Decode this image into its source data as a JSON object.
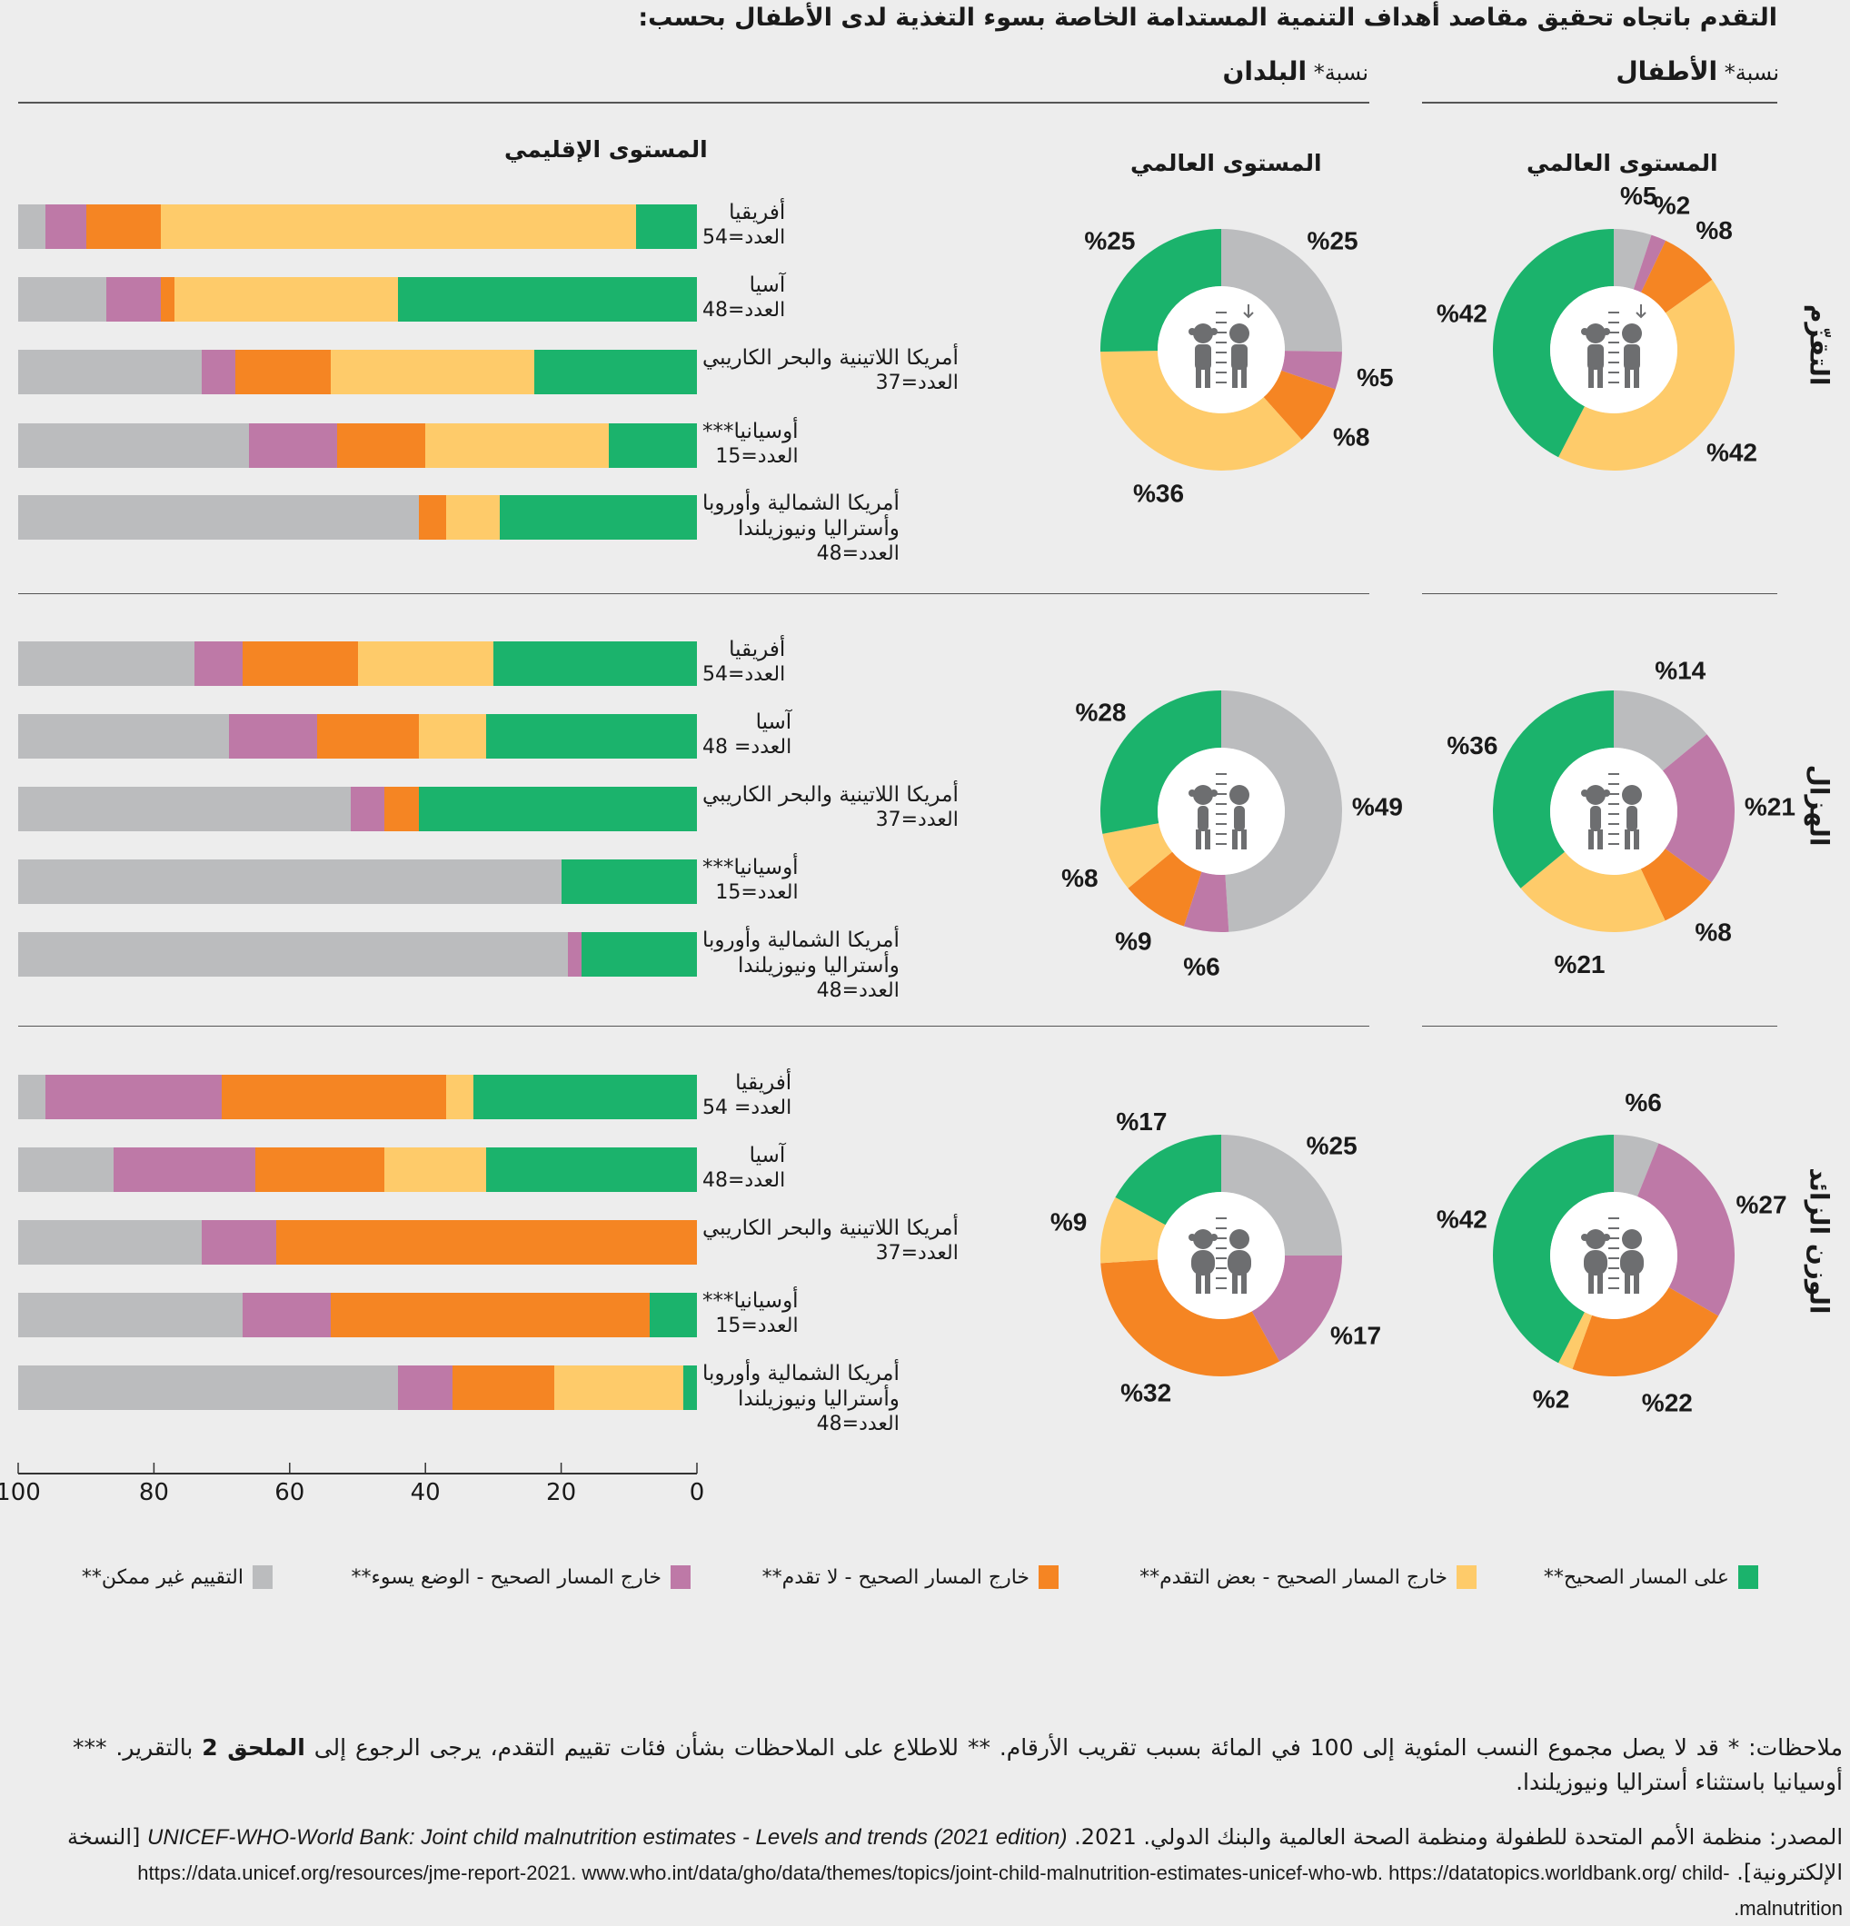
{
  "header": {
    "title": "التقدم باتجاه تحقيق مقاصد أهداف التنمية المستدامة الخاصة بسوء التغذية لدى الأطفال بحسب:",
    "children_share_prefix": "نسبة*",
    "children_share_label": "الأطفال",
    "countries_share_prefix": "نسبة*",
    "countries_share_label": "البلدان"
  },
  "subheaders": {
    "regional": "المستوى الإقليمي",
    "global_countries": "المستوى العالمي",
    "global_children": "المستوى العالمي"
  },
  "colors": {
    "on_track": "#1bb36c",
    "some_progress": "#fecb6a",
    "no_progress": "#f58523",
    "worsening": "#be79a7",
    "not_assessed": "#bbbcbe",
    "icon": "#6d6e70"
  },
  "legend": [
    {
      "key": "on_track",
      "label": "على المسار الصحيح**"
    },
    {
      "key": "some_progress",
      "label": "خارج المسار الصحيح - بعض التقدم**"
    },
    {
      "key": "no_progress",
      "label": "خارج المسار الصحيح - لا تقدم**"
    },
    {
      "key": "worsening",
      "label": "خارج المسار الصحيح - الوضع يسوء**"
    },
    {
      "key": "not_assessed",
      "label": "التقييم غير ممكن**"
    }
  ],
  "chart_data": [
    {
      "type": "bar",
      "orientation": "horizontal-stacked",
      "title": "المستوى الإقليمي",
      "xlabel": "",
      "xlim": [
        0,
        100
      ],
      "xticks": [
        100,
        80,
        60,
        40,
        20,
        0
      ],
      "segment_order": [
        "on_track",
        "some_progress",
        "no_progress",
        "worsening",
        "not_assessed"
      ],
      "panels": [
        {
          "indicator": "التقزّم",
          "icon": "children-height-down-icon",
          "regions": [
            {
              "name": "أفريقيا",
              "n_label": "العدد=54",
              "values": {
                "on_track": 9,
                "some_progress": 70,
                "no_progress": 11,
                "worsening": 6,
                "not_assessed": 4
              }
            },
            {
              "name": "آسيا",
              "n_label": "العدد=48",
              "values": {
                "on_track": 44,
                "some_progress": 33,
                "no_progress": 2,
                "worsening": 8,
                "not_assessed": 13
              }
            },
            {
              "name": "أمريكا اللاتينية والبحر الكاريبي",
              "n_label": "العدد=37",
              "values": {
                "on_track": 24,
                "some_progress": 30,
                "no_progress": 14,
                "worsening": 5,
                "not_assessed": 27
              }
            },
            {
              "name": "أوسيانيا***",
              "n_label": "العدد=15",
              "values": {
                "on_track": 13,
                "some_progress": 27,
                "no_progress": 13,
                "worsening": 13,
                "not_assessed": 34
              }
            },
            {
              "name": "أمريكا الشمالية وأوروبا",
              "name2": "وأستراليا ونيوزيلندا",
              "n_label": "العدد=48",
              "values": {
                "on_track": 29,
                "some_progress": 8,
                "no_progress": 4,
                "worsening": 0,
                "not_assessed": 59
              }
            }
          ]
        },
        {
          "indicator": "الهزال",
          "icon": "children-thin-icon",
          "regions": [
            {
              "name": "أفريقيا",
              "n_label": "العدد=54",
              "values": {
                "on_track": 30,
                "some_progress": 20,
                "no_progress": 17,
                "worsening": 7,
                "not_assessed": 26
              }
            },
            {
              "name": "آسيا",
              "n_label": "العدد= 48",
              "values": {
                "on_track": 31,
                "some_progress": 10,
                "no_progress": 15,
                "worsening": 13,
                "not_assessed": 31
              }
            },
            {
              "name": "أمريكا اللاتينية والبحر الكاريبي",
              "n_label": "العدد=37",
              "values": {
                "on_track": 41,
                "some_progress": 0,
                "no_progress": 5,
                "worsening": 5,
                "not_assessed": 49
              }
            },
            {
              "name": "أوسيانيا***",
              "n_label": "العدد=15",
              "values": {
                "on_track": 20,
                "some_progress": 0,
                "no_progress": 0,
                "worsening": 0,
                "not_assessed": 80
              }
            },
            {
              "name": "أمريكا الشمالية وأوروبا",
              "name2": "وأستراليا ونيوزيلندا",
              "n_label": "العدد=48",
              "values": {
                "on_track": 17,
                "some_progress": 0,
                "no_progress": 0,
                "worsening": 2,
                "not_assessed": 81
              }
            }
          ]
        },
        {
          "indicator": "الوزن الزائد",
          "icon": "children-overweight-icon",
          "regions": [
            {
              "name": "أفريقيا",
              "n_label": "العدد= 54",
              "values": {
                "on_track": 33,
                "some_progress": 4,
                "no_progress": 33,
                "worsening": 26,
                "not_assessed": 4
              }
            },
            {
              "name": "آسيا",
              "n_label": "العدد=48",
              "values": {
                "on_track": 31,
                "some_progress": 15,
                "no_progress": 19,
                "worsening": 21,
                "not_assessed": 14
              }
            },
            {
              "name": "أمريكا اللاتينية والبحر الكاريبي",
              "n_label": "العدد=37",
              "values": {
                "on_track": 0,
                "some_progress": 0,
                "no_progress": 62,
                "worsening": 11,
                "not_assessed": 27
              }
            },
            {
              "name": "أوسيانيا***",
              "n_label": "العدد=15",
              "values": {
                "on_track": 7,
                "some_progress": 0,
                "no_progress": 47,
                "worsening": 13,
                "not_assessed": 33
              }
            },
            {
              "name": "أمريكا الشمالية وأوروبا",
              "name2": "وأستراليا ونيوزيلندا",
              "n_label": "العدد=48",
              "values": {
                "on_track": 2,
                "some_progress": 19,
                "no_progress": 15,
                "worsening": 8,
                "not_assessed": 56
              }
            }
          ]
        }
      ]
    },
    {
      "type": "pie",
      "variant": "donut",
      "title": "نسبة* البلدان — المستوى العالمي",
      "slice_order_clockwise_from_top": [
        "not_assessed",
        "worsening",
        "no_progress",
        "some_progress",
        "on_track"
      ],
      "panels": [
        {
          "indicator": "التقزّم",
          "values": {
            "not_assessed": 25,
            "worsening": 5,
            "no_progress": 8,
            "some_progress": 36,
            "on_track": 25
          }
        },
        {
          "indicator": "الهزال",
          "values": {
            "not_assessed": 49,
            "worsening": 6,
            "no_progress": 9,
            "some_progress": 8,
            "on_track": 28
          }
        },
        {
          "indicator": "الوزن الزائد",
          "values": {
            "not_assessed": 25,
            "worsening": 17,
            "no_progress": 32,
            "some_progress": 9,
            "on_track": 17
          }
        }
      ]
    },
    {
      "type": "pie",
      "variant": "donut",
      "title": "نسبة* الأطفال — المستوى العالمي",
      "slice_order_clockwise_from_top": [
        "not_assessed",
        "worsening",
        "no_progress",
        "some_progress",
        "on_track"
      ],
      "panels": [
        {
          "indicator": "التقزّم",
          "values": {
            "not_assessed": 5,
            "worsening": 2,
            "no_progress": 8,
            "some_progress": 42,
            "on_track": 42
          }
        },
        {
          "indicator": "الهزال",
          "values": {
            "not_assessed": 14,
            "worsening": 21,
            "no_progress": 8,
            "some_progress": 21,
            "on_track": 36
          }
        },
        {
          "indicator": "الوزن الزائد",
          "values": {
            "not_assessed": 6,
            "worsening": 27,
            "no_progress": 22,
            "some_progress": 2,
            "on_track": 42
          }
        }
      ]
    }
  ],
  "indicators": [
    "التقزّم",
    "الهزال",
    "الوزن الزائد"
  ],
  "notes": {
    "line1": "ملاحظات: * قد لا يصل مجموع النسب المئوية إلى 100 في المائة بسبب تقريب الأرقام. ** للاطلاع على الملاحظات بشأن فئات تقييم التقدم، يرجى الرجوع إلى",
    "annex": "الملحق 2",
    "line2": "بالتقرير. *** أوسيانيا باستثناء أستراليا ونيوزيلندا."
  },
  "source": {
    "prefix": "المصدر: منظمة الأمم المتحدة للطفولة ومنظمة الصحة العالمية والبنك الدولي. 2021.",
    "title_en": "UNICEF-WHO-World Bank: Joint child malnutrition estimates - Levels and trends (2021 edition)",
    "online": "[النسخة الإلكترونية].",
    "urls": "https://data.unicef.org/resources/jme-report-2021. www.who.int/data/gho/data/themes/topics/joint-child-malnutrition-estimates-unicef-who-wb. https://datatopics.worldbank.org/ child-malnutrition."
  }
}
